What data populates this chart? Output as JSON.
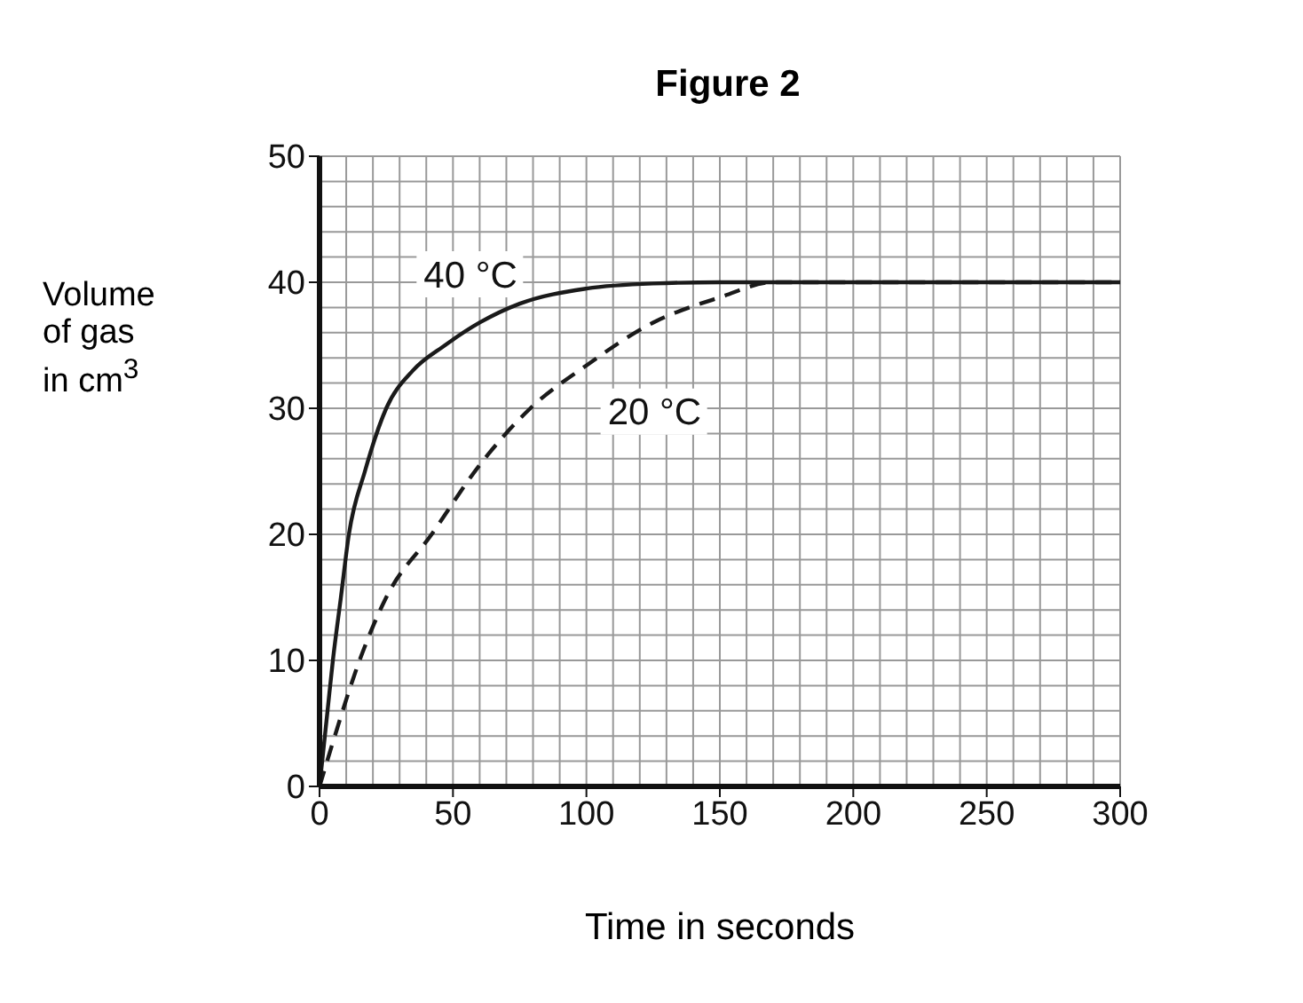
{
  "chart_data": {
    "type": "line",
    "title": "Figure 2",
    "xlabel": "Time in seconds",
    "ylabel": "Volume of gas in cm$^{3}$",
    "xlim": [
      0,
      300
    ],
    "xticks": [
      0,
      50,
      100,
      150,
      200,
      250,
      300
    ],
    "ylim": [
      0,
      50
    ],
    "yticks": [
      0,
      10,
      20,
      30,
      40,
      50
    ],
    "grid": true,
    "marker": "none",
    "series": [
      {
        "name": "40 °C",
        "color": "#1a1a1a",
        "line_style": "solid",
        "x": [
          0,
          3,
          5,
          8,
          11,
          17,
          25,
          35,
          47,
          60,
          75,
          100,
          125,
          150,
          300
        ],
        "values": [
          0,
          6,
          10,
          15,
          20,
          25,
          30,
          33,
          35,
          36.8,
          38.3,
          39.5,
          39.9,
          40,
          40
        ]
      },
      {
        "name": "20 °C",
        "color": "#1a1a1a",
        "line_style": "dashed",
        "x": [
          0,
          5,
          15,
          25,
          42,
          60,
          79,
          100,
          125,
          150,
          170,
          300
        ],
        "values": [
          0,
          3.5,
          10,
          15,
          20,
          25.5,
          30,
          33.4,
          36.8,
          38.8,
          40,
          40
        ]
      }
    ]
  }
}
